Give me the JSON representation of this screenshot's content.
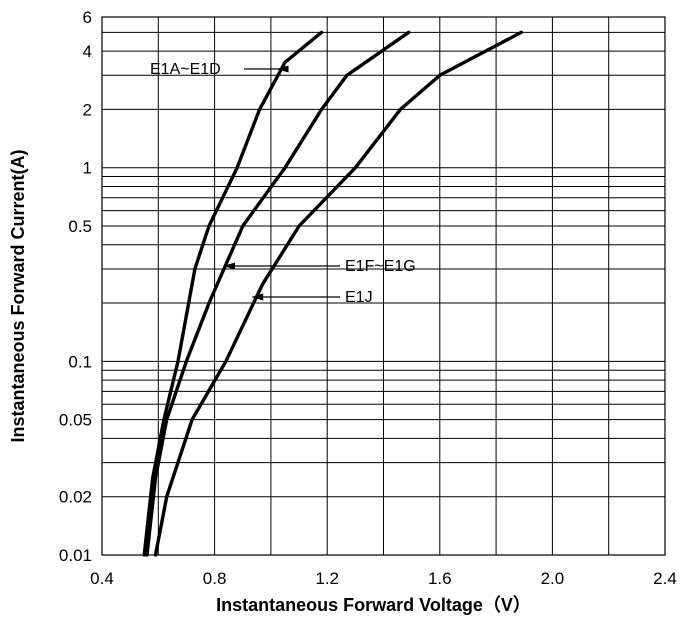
{
  "chart_data": {
    "type": "line",
    "title": "",
    "xlabel": "Instantaneous Forward Voltage（V）",
    "ylabel": "Instantaneous Forward Current(A)",
    "xlim": [
      0.4,
      2.4
    ],
    "ylim": [
      0.01,
      6
    ],
    "yscale": "log",
    "grid": true,
    "x_ticks": [
      0.4,
      0.8,
      1.2,
      1.6,
      2.0,
      2.4
    ],
    "x_tick_labels": [
      "0.4",
      "0.8",
      "1.2",
      "1.6",
      "2.0",
      "2.4"
    ],
    "x_minor_gridlines": [
      0.6,
      1.0,
      1.4,
      1.8,
      2.2
    ],
    "y_ticks": [
      0.01,
      0.02,
      0.05,
      0.1,
      0.5,
      1,
      2,
      4,
      6
    ],
    "y_tick_labels": [
      "0.01",
      "0.02",
      "0.05",
      "0.1",
      "0.5",
      "1",
      "2",
      "4",
      "6"
    ],
    "y_gridlines": [
      0.01,
      0.02,
      0.03,
      0.04,
      0.05,
      0.06,
      0.07,
      0.08,
      0.09,
      0.1,
      0.2,
      0.3,
      0.4,
      0.5,
      0.6,
      0.7,
      0.8,
      0.9,
      1,
      2,
      3,
      4,
      5,
      6
    ],
    "series": [
      {
        "name": "E1A~E1D",
        "points": [
          [
            0.55,
            0.01
          ],
          [
            0.58,
            0.025
          ],
          [
            0.62,
            0.05
          ],
          [
            0.67,
            0.1
          ],
          [
            0.73,
            0.3
          ],
          [
            0.78,
            0.5
          ],
          [
            0.88,
            1.0
          ],
          [
            0.96,
            2.0
          ],
          [
            1.05,
            3.5
          ],
          [
            1.18,
            5.0
          ]
        ]
      },
      {
        "name": "E1F~E1G",
        "points": [
          [
            0.56,
            0.01
          ],
          [
            0.59,
            0.025
          ],
          [
            0.63,
            0.05
          ],
          [
            0.7,
            0.1
          ],
          [
            0.78,
            0.2
          ],
          [
            0.9,
            0.5
          ],
          [
            1.05,
            1.0
          ],
          [
            1.18,
            2.0
          ],
          [
            1.27,
            3.0
          ],
          [
            1.49,
            5.0
          ]
        ]
      },
      {
        "name": "E1J",
        "points": [
          [
            0.59,
            0.01
          ],
          [
            0.63,
            0.02
          ],
          [
            0.72,
            0.05
          ],
          [
            0.84,
            0.1
          ],
          [
            0.97,
            0.25
          ],
          [
            1.1,
            0.5
          ],
          [
            1.3,
            1.0
          ],
          [
            1.46,
            2.0
          ],
          [
            1.6,
            3.0
          ],
          [
            1.89,
            5.0
          ]
        ]
      }
    ],
    "annotations": [
      {
        "text": "E1A~E1D",
        "arrow_to": [
          1.02,
          3.3
        ]
      },
      {
        "text": "E1F~E1G",
        "arrow_to": [
          0.83,
          0.35
        ]
      },
      {
        "text": "E1J",
        "arrow_to": [
          0.93,
          0.25
        ]
      }
    ]
  }
}
